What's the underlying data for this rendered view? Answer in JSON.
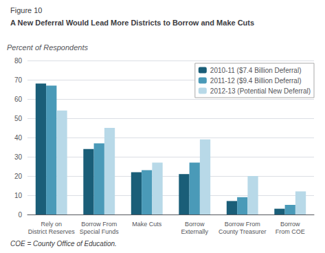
{
  "chart_data": {
    "type": "bar",
    "subtitle": "Figure 10",
    "title": "A New Deferral Would Lead More Districts to Borrow and Make Cuts",
    "ylabel": "Percent of Respondents",
    "annotations": [
      "COE = County Office of Education."
    ],
    "categories": [
      "Rely on\nDistrict Reserves",
      "Borrow From\nSpecial Funds",
      "Make Cuts",
      "Borrow\nExternally",
      "Borrow From\nCounty Treasurer",
      "Borrow\nFrom COE"
    ],
    "series": [
      {
        "name": "2010-11 ($7.4 Billion Deferral)",
        "color": "#1a5e78",
        "values": [
          68,
          34,
          22,
          21,
          7,
          3
        ]
      },
      {
        "name": "2011-12 ($9.4 Billion Deferral)",
        "color": "#4a9ab8",
        "values": [
          67,
          37,
          23,
          27,
          9,
          5
        ]
      },
      {
        "name": "2012-13 (Potential New Deferral)",
        "color": "#b8d9e8",
        "values": [
          54,
          45,
          27,
          39,
          20,
          12
        ]
      }
    ],
    "ylim": [
      0,
      80
    ],
    "yticks": [
      0,
      10,
      20,
      30,
      40,
      50,
      60,
      70,
      80
    ],
    "grid": true,
    "legend": "upper right"
  }
}
